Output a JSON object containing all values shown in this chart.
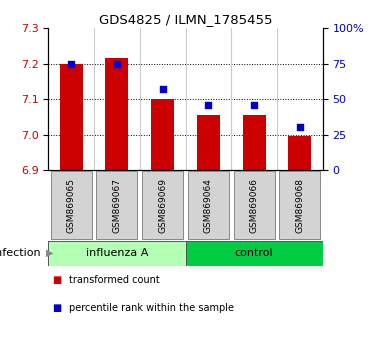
{
  "title": "GDS4825 / ILMN_1785455",
  "samples": [
    "GSM869065",
    "GSM869067",
    "GSM869069",
    "GSM869064",
    "GSM869066",
    "GSM869068"
  ],
  "group_labels": [
    "influenza A",
    "control"
  ],
  "bar_values": [
    7.2,
    7.215,
    7.1,
    7.055,
    7.055,
    6.997
  ],
  "dot_values": [
    75,
    75,
    57,
    46,
    46,
    30
  ],
  "ymin": 6.9,
  "ymax": 7.3,
  "y2min": 0,
  "y2max": 100,
  "yticks": [
    6.9,
    7.0,
    7.1,
    7.2,
    7.3
  ],
  "y2ticks": [
    0,
    25,
    50,
    75,
    100
  ],
  "bar_color": "#CC0000",
  "dot_color": "#0000CC",
  "infection_label": "infection",
  "legend_bar": "transformed count",
  "legend_dot": "percentile rank within the sample",
  "bar_bottom": 6.9,
  "tick_label_color_left": "#CC0000",
  "tick_label_color_right": "#0000CC",
  "sample_box_color": "#d3d3d3",
  "sample_box_edge": "#888888",
  "influenza_color": "#b3ffb3",
  "control_color": "#00cc44",
  "grid_yticks": [
    7.0,
    7.1,
    7.2
  ],
  "y2tick_labels": [
    "0",
    "25",
    "50",
    "75",
    "100%"
  ]
}
